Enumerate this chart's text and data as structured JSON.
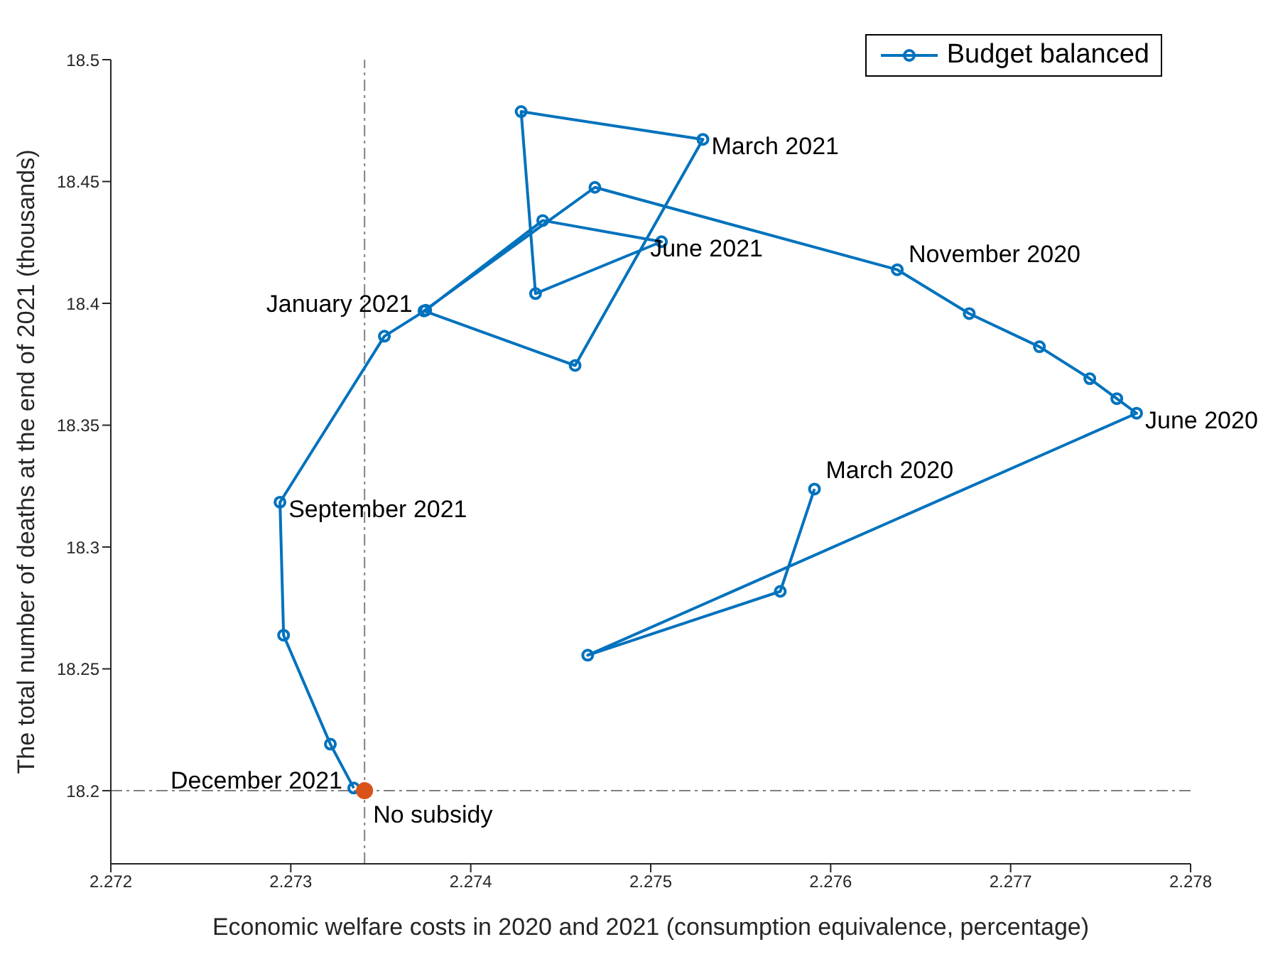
{
  "chart_data": {
    "type": "line",
    "xlabel": "Economic welfare costs in 2020 and 2021 (consumption equivalence, percentage)",
    "ylabel": "The total number of deaths at the end of 2021 (thousands)",
    "series": [
      {
        "name": "Budget balanced",
        "color": "#0072bd",
        "x": [
          2.27591,
          2.27572,
          2.27465,
          2.2777,
          2.27759,
          2.27744,
          2.27716,
          2.27677,
          2.27637,
          2.27469,
          2.27374,
          2.27458,
          2.27529,
          2.27428,
          2.27436,
          2.27506,
          2.2744,
          2.27375,
          2.27352,
          2.27294,
          2.27296,
          2.27322,
          2.27335
        ],
        "values": [
          18.3238,
          18.2818,
          18.2556,
          18.3549,
          18.3609,
          18.3691,
          18.3822,
          18.3958,
          18.4138,
          18.4476,
          18.3969,
          18.3745,
          18.4673,
          18.4787,
          18.404,
          18.4253,
          18.434,
          18.3972,
          18.3865,
          18.3184,
          18.2638,
          18.2191,
          18.2011
        ],
        "marker": "circle"
      },
      {
        "type": "scatter",
        "color": "#d95319",
        "x": [
          2.27341
        ],
        "values": [
          18.2
        ],
        "marker": "circle"
      }
    ],
    "annotations": [
      {
        "text": "March 2020",
        "x": 2.27591,
        "y": 18.3238
      },
      {
        "text": "June 2020",
        "x": 2.2777,
        "y": 18.3549
      },
      {
        "text": "November 2020",
        "x": 2.27637,
        "y": 18.4138
      },
      {
        "text": "January 2021",
        "x": 2.27374,
        "y": 18.3969
      },
      {
        "text": "March 2021",
        "x": 2.27529,
        "y": 18.4673
      },
      {
        "text": "June 2021",
        "x": 2.27506,
        "y": 18.4253
      },
      {
        "text": "September 2021",
        "x": 2.27294,
        "y": 18.3184
      },
      {
        "text": "December 2021",
        "x": 2.27335,
        "y": 18.2011
      },
      {
        "text": "No subsidy",
        "x": 2.27341,
        "y": 18.2
      }
    ],
    "ref_lines": [
      {
        "axis": "x",
        "value": 2.27341,
        "color": "#808080",
        "line_style": "dashed"
      },
      {
        "axis": "y",
        "value": 18.2,
        "color": "#808080",
        "line_style": "dashed"
      }
    ],
    "xlim": [
      2.272,
      2.278
    ],
    "xticks": [
      2.272,
      2.273,
      2.274,
      2.275,
      2.276,
      2.277,
      2.278
    ],
    "ylim": [
      18.17,
      18.5
    ],
    "yticks": [
      18.2,
      18.25,
      18.3,
      18.35,
      18.4,
      18.45,
      18.5
    ],
    "grid": false,
    "legend": "top right",
    "line_style": "solid"
  }
}
